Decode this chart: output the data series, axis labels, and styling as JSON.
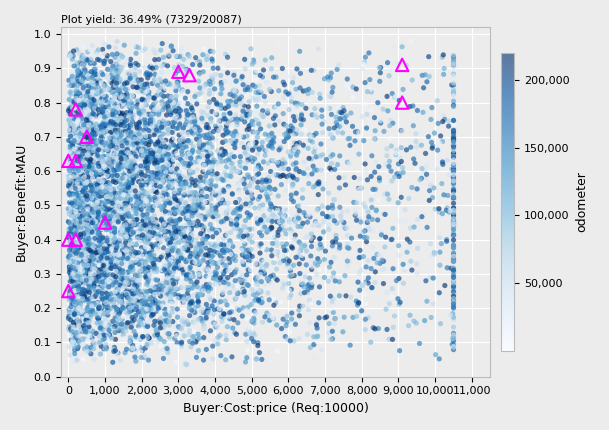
{
  "title": "Plot yield: 36.49% (7329/20087)",
  "xlabel": "Buyer:Cost:price (Req:10000)",
  "ylabel": "Buyer:Benefit:MAU",
  "xlim": [
    -200,
    11500
  ],
  "ylim": [
    0.0,
    1.02
  ],
  "xticks": [
    0,
    1000,
    2000,
    3000,
    4000,
    5000,
    6000,
    7000,
    8000,
    9000,
    10000,
    11000
  ],
  "xtick_labels": [
    "0",
    "1,000",
    "2,000",
    "3,000",
    "4,000",
    "5,000",
    "6,000",
    "7,000",
    "8,000",
    "9,000",
    "10,000",
    "11,000"
  ],
  "yticks": [
    0.0,
    0.1,
    0.2,
    0.3,
    0.4,
    0.5,
    0.6,
    0.7,
    0.8,
    0.9,
    1.0
  ],
  "ytick_labels": [
    "0.0",
    "0.1",
    "0.2",
    "0.3",
    "0.4",
    "0.5",
    "0.6",
    "0.7",
    "0.8",
    "0.9",
    "1.0"
  ],
  "colorbar_label": "odometer",
  "colorbar_ticks": [
    50000,
    100000,
    150000,
    200000
  ],
  "colorbar_tick_labels": [
    "50,000",
    "100,000",
    "150,000",
    "200,000"
  ],
  "cmap": "Blues",
  "odo_min": 0,
  "odo_max": 220000,
  "n_scatter": 7329,
  "seed": 42,
  "background_color": "#ececec",
  "grid_color": "white",
  "title_fontsize": 8,
  "axis_label_fontsize": 9,
  "tick_fontsize": 8,
  "triangle_positions": [
    [
      0,
      0.63
    ],
    [
      0,
      0.4
    ],
    [
      0,
      0.25
    ],
    [
      200,
      0.78
    ],
    [
      200,
      0.63
    ],
    [
      200,
      0.4
    ],
    [
      500,
      0.7
    ],
    [
      1000,
      0.45
    ],
    [
      3000,
      0.89
    ],
    [
      3300,
      0.88
    ],
    [
      9100,
      0.91
    ],
    [
      9100,
      0.8
    ]
  ]
}
